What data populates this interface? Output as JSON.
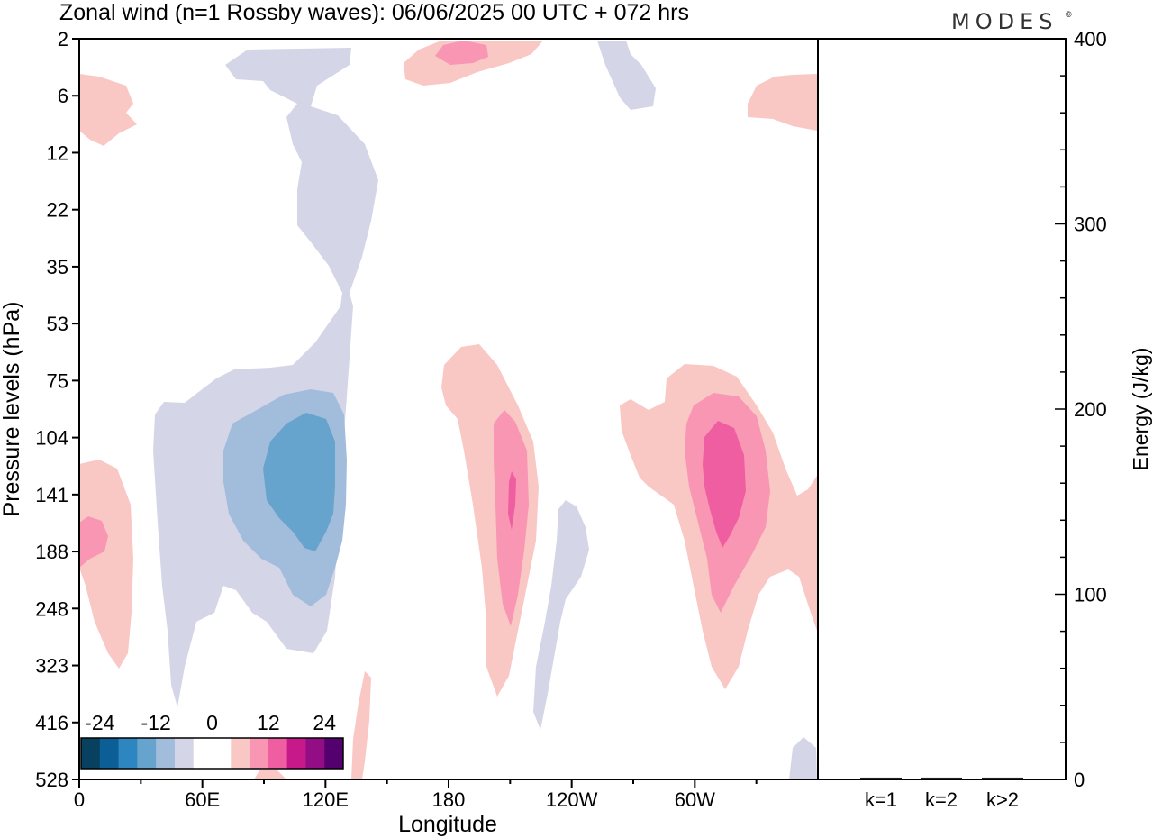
{
  "chart_data": [
    {
      "type": "heatmap",
      "title": "Zonal wind (n=1 Rossby waves):  06/06/2025  00 UTC  + 072 hrs",
      "xlabel": "Longitude",
      "ylabel": "Pressure levels (hPa)",
      "x_ticks": [
        "0",
        "60E",
        "120E",
        "180",
        "120W",
        "60W"
      ],
      "y_ticks": [
        "2",
        "6",
        "12",
        "22",
        "35",
        "53",
        "75",
        "104",
        "141",
        "188",
        "248",
        "323",
        "416",
        "528"
      ],
      "colorbar": {
        "labels": [
          "-24",
          "-12",
          "0",
          "12",
          "24"
        ],
        "colors": [
          "#08405f",
          "#0b5f96",
          "#2d86c0",
          "#67a4cd",
          "#a2bcdc",
          "#d4d6e8",
          "#ffffff",
          "#ffffff",
          "#f9c8c4",
          "#f896b4",
          "#ef5ea0",
          "#c8198a",
          "#930e85",
          "#54006f"
        ]
      },
      "field_features": [
        {
          "sign": "negative",
          "level": "weak",
          "longitude": "0-140E",
          "pressure_hPa": "2-416",
          "note": "broad easterly anomaly column"
        },
        {
          "sign": "negative",
          "level": "moderate",
          "longitude": "35E-130E",
          "pressure_hPa": "90-250"
        },
        {
          "sign": "negative",
          "level": "strong",
          "longitude": "90E-125E",
          "pressure_hPa": "110-190"
        },
        {
          "sign": "positive",
          "level": "weak",
          "longitude": "0-25E",
          "pressure_hPa": "120-330"
        },
        {
          "sign": "positive",
          "level": "weak",
          "longitude": "175E-135W",
          "pressure_hPa": "65-390"
        },
        {
          "sign": "positive",
          "level": "moderate",
          "longitude": "165W-145W",
          "pressure_hPa": "100-270"
        },
        {
          "sign": "negative",
          "level": "weak",
          "longitude": "130W-115W",
          "pressure_hPa": "141-416"
        },
        {
          "sign": "positive",
          "level": "weak",
          "longitude": "90W-0",
          "pressure_hPa": "75-330"
        },
        {
          "sign": "positive",
          "level": "moderate",
          "longitude": "75W-35W",
          "pressure_hPa": "80-260"
        },
        {
          "sign": "positive",
          "level": "strong",
          "longitude": "70W-45W",
          "pressure_hPa": "100-190"
        },
        {
          "sign": "positive",
          "level": "weak",
          "longitude": "165E-120W",
          "pressure_hPa": "2-6"
        }
      ]
    },
    {
      "type": "bar",
      "ylabel": "Energy (J/kg)",
      "categories": [
        "k=1",
        "k=2",
        "k>2"
      ],
      "values": [
        1,
        1,
        1
      ],
      "ylim": [
        0,
        400
      ],
      "y_ticks": [
        "0",
        "100",
        "200",
        "300",
        "400"
      ]
    }
  ],
  "brand": "MODES",
  "brand_mark": "©"
}
